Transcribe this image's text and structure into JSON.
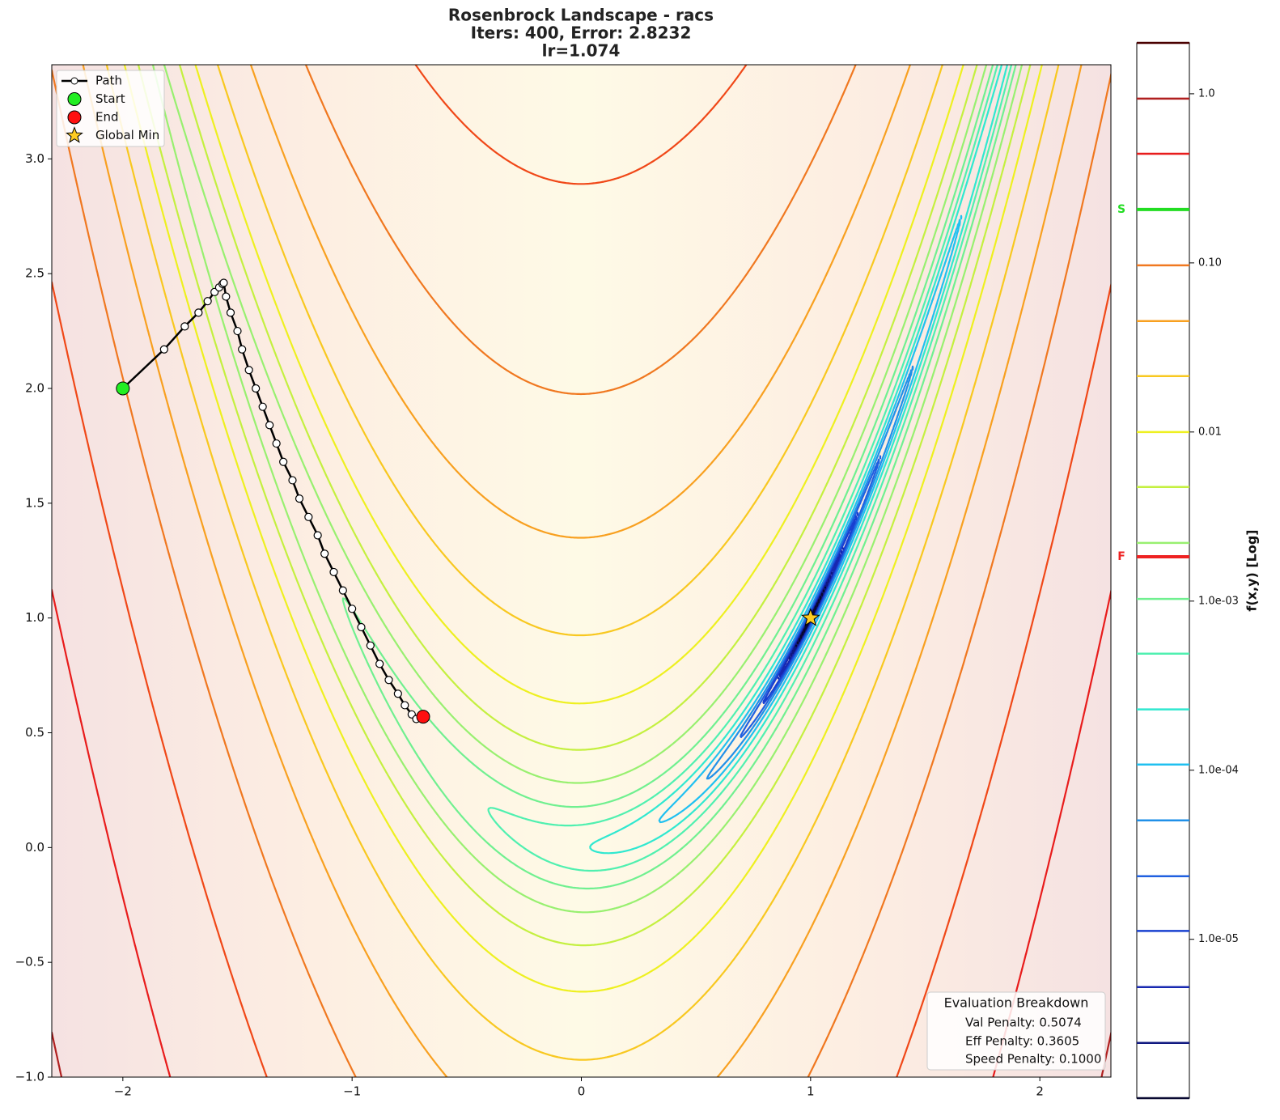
{
  "chart_data": {
    "type": "contour",
    "title": "Rosenbrock Landscape - racs",
    "subtitle": [
      "Iters: 400, Error: 2.8232",
      "lr=1.074"
    ],
    "xlim": [
      -2.31,
      2.31
    ],
    "ylim": [
      -1.0,
      3.41
    ],
    "xticks": [
      {
        "value": -2,
        "label": "−2"
      },
      {
        "value": -1,
        "label": "−1"
      },
      0,
      1,
      2
    ],
    "yticks": [
      {
        "value": -1,
        "label": "−1.0"
      },
      {
        "value": -0.5,
        "label": "−0.5"
      },
      {
        "value": 0,
        "label": "0.0"
      },
      0.5,
      {
        "value": 1,
        "label": "1.0"
      },
      1.5,
      {
        "value": 2,
        "label": "2.0"
      },
      2.5,
      {
        "value": 3,
        "label": "3.0"
      }
    ],
    "levels": [
      2.0,
      0.936,
      0.442,
      0.207,
      0.0968,
      0.0453,
      0.0214,
      0.01,
      0.00473,
      0.00221,
      0.00103,
      0.000489,
      0.000229,
      0.000108,
      5.05e-05,
      2.36e-05,
      1.12e-05,
      5.22e-06,
      2.44e-06,
      1.15e-06
    ],
    "level_colors": [
      "#4a0000",
      "#b02020",
      "#e81c1c",
      "#f04818",
      "#f07820",
      "#f8a020",
      "#f8c820",
      "#eef020",
      "#c4f040",
      "#98f070",
      "#70f090",
      "#50f0b0",
      "#30e8d0",
      "#20c0f0",
      "#2090e8",
      "#2060e0",
      "#1840d0",
      "#1828b0",
      "#101880",
      "#080830"
    ],
    "path": {
      "name": "Path",
      "color": "#000000",
      "x": [
        -2.0,
        -1.82,
        -1.73,
        -1.67,
        -1.63,
        -1.6,
        -1.58,
        -1.565,
        -1.56,
        -1.55,
        -1.53,
        -1.5,
        -1.48,
        -1.45,
        -1.42,
        -1.39,
        -1.36,
        -1.33,
        -1.3,
        -1.26,
        -1.23,
        -1.19,
        -1.15,
        -1.12,
        -1.08,
        -1.04,
        -1.0,
        -0.96,
        -0.92,
        -0.88,
        -0.84,
        -0.8,
        -0.77,
        -0.74,
        -0.72,
        -0.69
      ],
      "y": [
        2.0,
        2.17,
        2.27,
        2.33,
        2.38,
        2.42,
        2.44,
        2.455,
        2.46,
        2.4,
        2.33,
        2.25,
        2.17,
        2.08,
        2.0,
        1.92,
        1.84,
        1.76,
        1.68,
        1.6,
        1.52,
        1.44,
        1.36,
        1.28,
        1.2,
        1.12,
        1.04,
        0.96,
        0.88,
        0.8,
        0.73,
        0.67,
        0.62,
        0.58,
        0.56,
        0.57
      ]
    },
    "points": [
      {
        "name": "Start",
        "x": -2.0,
        "y": 2.0,
        "color": "#22ee22",
        "marker": "circle"
      },
      {
        "name": "End",
        "x": -0.69,
        "y": 0.57,
        "color": "#ff1010",
        "marker": "circle"
      },
      {
        "name": "Global Min",
        "x": 1.0,
        "y": 1.0,
        "color": "#ffcc22",
        "marker": "star"
      }
    ],
    "legend": "upper left",
    "colorbar": {
      "label": "f(x,y) [Log]",
      "scale": "log",
      "lim": [
        1.15e-06,
        2.0
      ],
      "ticks": [
        {
          "value": 1.0,
          "label": "1.0"
        },
        {
          "value": 0.1,
          "label": "0.10"
        },
        0.01,
        {
          "value": 0.001,
          "label": "1.0e-03"
        },
        {
          "value": 0.0001,
          "label": "1.0e-04"
        },
        {
          "value": 1e-05,
          "label": "1.0e-05"
        }
      ],
      "markers": [
        {
          "label": "S",
          "value": 0.207,
          "color": "#22dd22"
        },
        {
          "label": "F",
          "value": 0.00183,
          "color": "#ee2222"
        }
      ]
    },
    "annotation": {
      "title": "Evaluation Breakdown",
      "lines": [
        "Val Penalty: 0.5074",
        "Eff Penalty: 0.3605",
        "Speed Penalty: 0.1000"
      ],
      "corner": "lower right"
    }
  }
}
